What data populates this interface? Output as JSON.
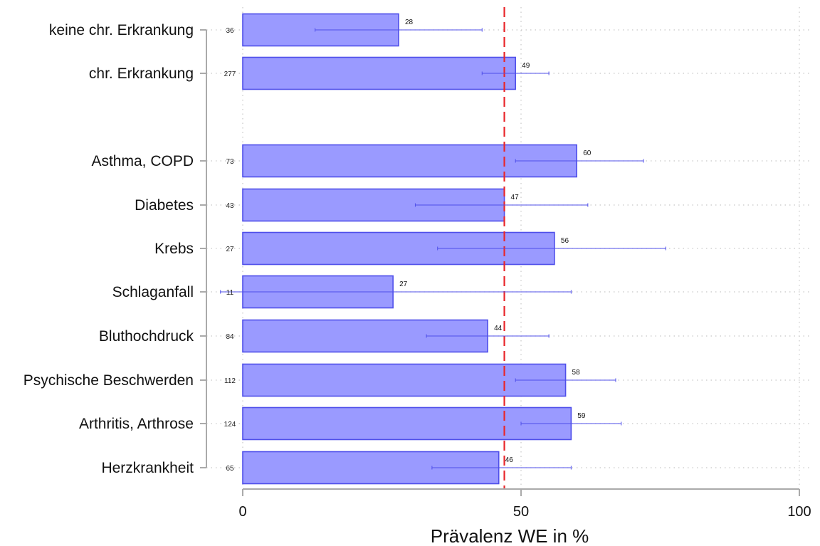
{
  "chart_data": {
    "type": "bar",
    "orientation": "horizontal",
    "xlabel": "Prävalenz WE in %",
    "xlim": [
      0,
      100
    ],
    "xticks": [
      0,
      50,
      100
    ],
    "grid": "dotted vertical and horizontal",
    "reference_line": {
      "value": 47,
      "style": "dashed",
      "color": "#e8262a"
    },
    "categories": [
      "keine chr. Erkrankung",
      "chr. Erkrankung",
      "Asthma, COPD",
      "Diabetes",
      "Krebs",
      "Schlaganfall",
      "Bluthochdruck",
      "Psychische Beschwerden",
      "Arthritis, Arthrose",
      "Herzkrankheit"
    ],
    "values": [
      28,
      49,
      60,
      47,
      56,
      27,
      44,
      58,
      59,
      46
    ],
    "value_labels": [
      "28",
      "49",
      "60",
      "47",
      "56",
      "27",
      "44",
      "58",
      "59",
      "46"
    ],
    "n": [
      "36",
      "277",
      "73",
      "43",
      "27",
      "11",
      "84",
      "112",
      "124",
      "65"
    ],
    "ci": [
      [
        13,
        43
      ],
      [
        43,
        55
      ],
      [
        49,
        72
      ],
      [
        31,
        62
      ],
      [
        35,
        76
      ],
      [
        -4,
        59
      ],
      [
        33,
        55
      ],
      [
        49,
        67
      ],
      [
        50,
        68
      ],
      [
        34,
        59
      ]
    ],
    "colors": {
      "bar_fill": "#9a9aff",
      "bar_stroke": "#4f4fea",
      "errorbar": "#4f4fea",
      "axis": "#aaaaaa"
    }
  }
}
